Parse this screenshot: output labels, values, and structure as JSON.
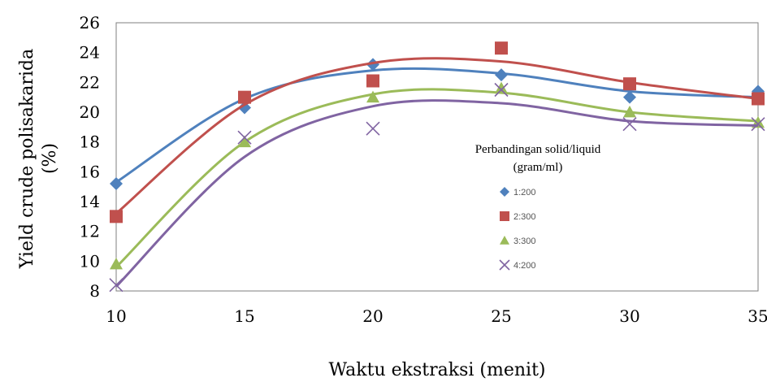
{
  "chart_data": {
    "type": "scatter",
    "xlabel": "Waktu ekstraksi (menit)",
    "ylabel_line1": "Yield  crude polisakarida",
    "ylabel_line2": "(%)",
    "xlim": [
      10,
      35
    ],
    "ylim": [
      8,
      26
    ],
    "x_ticks": [
      10,
      15,
      20,
      25,
      30,
      35
    ],
    "y_ticks": [
      8,
      10,
      12,
      14,
      16,
      18,
      20,
      22,
      24,
      26
    ],
    "grid": false,
    "legend": {
      "title_line1": "Perbandingan solid/liquid",
      "title_line2": "(gram/ml)",
      "placement": "right"
    },
    "x": [
      10,
      15,
      20,
      25,
      30,
      35
    ],
    "series": [
      {
        "name": "1:200",
        "color": "#4F81BD",
        "marker": "diamond",
        "values": [
          15.2,
          20.3,
          23.2,
          22.5,
          21.0,
          21.4
        ],
        "trend": [
          15.3,
          20.9,
          22.8,
          22.6,
          21.4,
          21.0
        ]
      },
      {
        "name": "2:300",
        "color": "#C0504D",
        "marker": "square",
        "values": [
          13.0,
          21.0,
          22.1,
          24.3,
          21.9,
          20.9
        ],
        "trend": [
          13.2,
          20.5,
          23.3,
          23.4,
          22.0,
          20.9
        ]
      },
      {
        "name": "3:300",
        "color": "#9BBB59",
        "marker": "triangle",
        "values": [
          9.8,
          18.0,
          21.0,
          21.6,
          20.0,
          19.3
        ],
        "trend": [
          9.6,
          18.0,
          21.2,
          21.3,
          20.0,
          19.4
        ]
      },
      {
        "name": "4:200",
        "color": "#8064A2",
        "marker": "x",
        "values": [
          8.4,
          18.3,
          18.9,
          21.5,
          19.2,
          19.2
        ],
        "trend": [
          8.3,
          17.0,
          20.4,
          20.6,
          19.4,
          19.1
        ]
      }
    ]
  }
}
